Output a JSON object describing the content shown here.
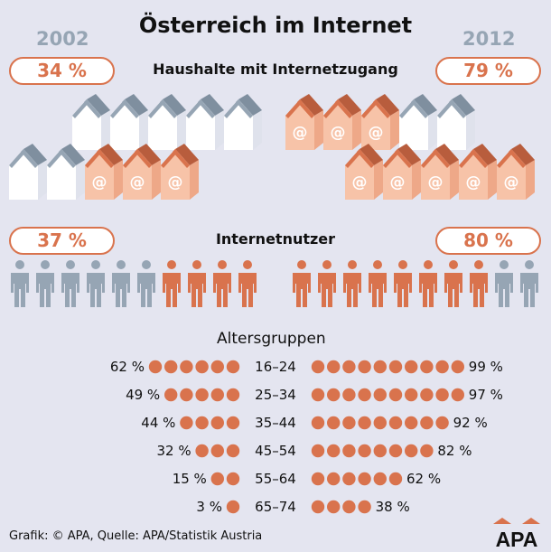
{
  "title": "Österreich im Internet",
  "years": [
    "2002",
    "2012"
  ],
  "households": {
    "heading": "Haushalte mit Internetzugang",
    "label_2002": "34 %",
    "label_2012": "79 %",
    "at_symbol": "@"
  },
  "users": {
    "heading": "Internetnutzer",
    "label_2002": "37 %",
    "label_2012": "80 %"
  },
  "age_groups_heading": "Altersgruppen",
  "footer": "Grafik: © APA, Quelle: APA/Statistik Austria",
  "logo_text": "APA",
  "colors": {
    "accent": "#d9734d",
    "accent_light": "#f7c3a8",
    "gray": "#96a5b4",
    "background": "#e4e5f0"
  },
  "chart_data": [
    {
      "type": "bar",
      "title": "Haushalte mit Internetzugang",
      "categories": [
        "2002",
        "2012"
      ],
      "values": [
        34,
        79
      ],
      "unit": "%"
    },
    {
      "type": "bar",
      "title": "Internetnutzer",
      "categories": [
        "2002",
        "2012"
      ],
      "values": [
        37,
        80
      ],
      "unit": "%"
    },
    {
      "type": "bar",
      "title": "Altersgruppen",
      "categories": [
        "16–24",
        "25–34",
        "35–44",
        "45–54",
        "55–64",
        "65–74"
      ],
      "series": [
        {
          "name": "2002",
          "values": [
            62,
            49,
            44,
            32,
            15,
            3
          ],
          "labels": [
            "62 %",
            "49 %",
            "44 %",
            "32 %",
            "15 %",
            "3 %"
          ],
          "dots": [
            6,
            5,
            4,
            3,
            2,
            1
          ]
        },
        {
          "name": "2012",
          "values": [
            99,
            97,
            92,
            82,
            62,
            38
          ],
          "labels": [
            "99 %",
            "97 %",
            "92 %",
            "82 %",
            "62 %",
            "38 %"
          ],
          "dots": [
            10,
            10,
            9,
            8,
            6,
            4
          ]
        }
      ]
    }
  ]
}
